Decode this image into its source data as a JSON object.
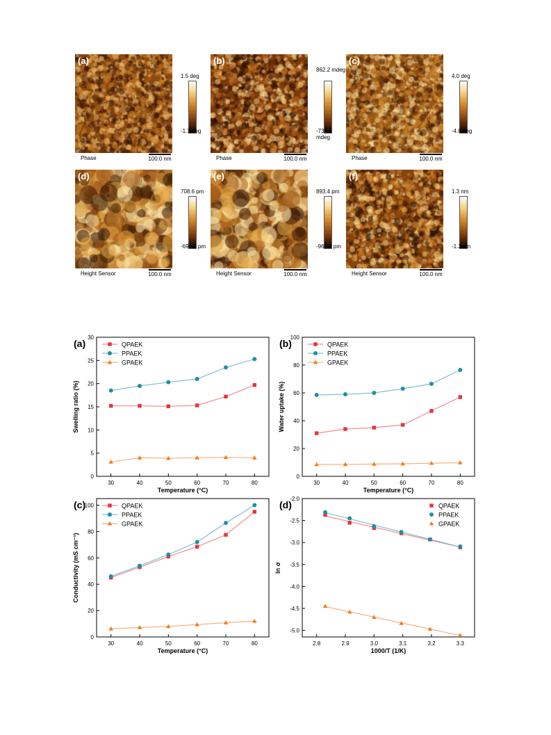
{
  "afm_panels": [
    {
      "label": "(a)",
      "mode": "Phase",
      "scale": "100.0 nm",
      "cmax": "1.5 deg",
      "cmin": "-1.3 deg"
    },
    {
      "label": "(b)",
      "mode": "Phase",
      "scale": "100.0 nm",
      "cmax": "862.2 mdeg",
      "cmin": "-739.8 mdeg"
    },
    {
      "label": "(c)",
      "mode": "Phase",
      "scale": "100.0 nm",
      "cmax": "4.0 deg",
      "cmin": "-4.8 deg"
    },
    {
      "label": "(d)",
      "mode": "Height Sensor",
      "scale": "100.0 nm",
      "cmax": "708.6 pm",
      "cmin": "-695.7 pm"
    },
    {
      "label": "(e)",
      "mode": "Height Sensor",
      "scale": "100.0 nm",
      "cmax": "893.4 pm",
      "cmin": "-960.2 pm"
    },
    {
      "label": "(f)",
      "mode": "Height Sensor",
      "scale": "100.0 nm",
      "cmax": "1.3 nm",
      "cmin": "-1.3 nm"
    }
  ],
  "colors": {
    "QPAEK": "#e8343a",
    "PPAEK": "#1f8fa6",
    "GPAEK": "#f07f1f",
    "line_QPAEK": "#f28b8d",
    "line_PPAEK": "#7fc0d3",
    "line_GPAEK": "#f5b07c"
  },
  "chart_data": [
    {
      "type": "line",
      "panel": "(a)",
      "xlabel": "Temperature (°C)",
      "ylabel": "Swelling ratio (%)",
      "x": [
        30,
        40,
        50,
        60,
        70,
        80
      ],
      "xlim": [
        25,
        85
      ],
      "ylim": [
        0,
        30
      ],
      "xticks": [
        30,
        40,
        50,
        60,
        70,
        80
      ],
      "yticks": [
        0,
        5,
        10,
        15,
        20,
        25,
        30
      ],
      "legend": "top-left",
      "series": [
        {
          "name": "QPAEK",
          "values": [
            15.2,
            15.2,
            15.1,
            15.3,
            17.2,
            19.7
          ]
        },
        {
          "name": "PPAEK",
          "values": [
            18.5,
            19.5,
            20.3,
            21.0,
            23.5,
            25.3
          ]
        },
        {
          "name": "GPAEK",
          "values": [
            3.1,
            4.0,
            3.9,
            4.0,
            4.1,
            4.0
          ]
        }
      ]
    },
    {
      "type": "line",
      "panel": "(b)",
      "xlabel": "Temperature (°C)",
      "ylabel": "Water uptake (%)",
      "x": [
        30,
        40,
        50,
        60,
        70,
        80
      ],
      "xlim": [
        25,
        85
      ],
      "ylim": [
        0,
        100
      ],
      "xticks": [
        30,
        40,
        50,
        60,
        70,
        80
      ],
      "yticks": [
        0,
        20,
        40,
        60,
        80,
        100
      ],
      "legend": "top-left",
      "series": [
        {
          "name": "QPAEK",
          "values": [
            31,
            34,
            35,
            37,
            47,
            57
          ]
        },
        {
          "name": "PPAEK",
          "values": [
            58.5,
            59,
            60,
            63,
            66.5,
            76.5
          ]
        },
        {
          "name": "GPAEK",
          "values": [
            8.5,
            8.6,
            8.8,
            9.0,
            9.4,
            9.8
          ]
        }
      ]
    },
    {
      "type": "line",
      "panel": "(c)",
      "xlabel": "Temperature (°C)",
      "ylabel": "Conductivity (mS cm⁻¹)",
      "x": [
        30,
        40,
        50,
        60,
        70,
        80
      ],
      "xlim": [
        25,
        85
      ],
      "ylim": [
        0,
        105
      ],
      "xticks": [
        30,
        40,
        50,
        60,
        70,
        80
      ],
      "yticks": [
        0,
        20,
        40,
        60,
        80,
        100
      ],
      "legend": "top-left",
      "series": [
        {
          "name": "QPAEK",
          "values": [
            45,
            53,
            61,
            68.5,
            77.5,
            95
          ]
        },
        {
          "name": "PPAEK",
          "values": [
            46,
            54,
            62.5,
            72,
            86.5,
            100
          ]
        },
        {
          "name": "GPAEK",
          "values": [
            6.2,
            7.2,
            8.0,
            9.4,
            10.8,
            12.0
          ]
        }
      ]
    },
    {
      "type": "scatter",
      "panel": "(d)",
      "xlabel": "1000/T (1/K)",
      "ylabel": "ln σ",
      "xlim": [
        2.75,
        3.35
      ],
      "ylim": [
        -5.15,
        -2.0
      ],
      "xticks": [
        2.8,
        2.9,
        3.0,
        3.1,
        3.2,
        3.3
      ],
      "yticks": [
        -2.0,
        -2.5,
        -3.0,
        -3.5,
        -4.0,
        -4.5,
        -5.0
      ],
      "legend": "top-right",
      "fit_lines": true,
      "series": [
        {
          "name": "QPAEK",
          "x": [
            2.83,
            2.915,
            3.0,
            3.095,
            3.195,
            3.3
          ],
          "values": [
            -2.37,
            -2.55,
            -2.67,
            -2.79,
            -2.93,
            -3.11
          ]
        },
        {
          "name": "PPAEK",
          "x": [
            2.83,
            2.915,
            3.0,
            3.095,
            3.195,
            3.3
          ],
          "values": [
            -2.31,
            -2.45,
            -2.63,
            -2.76,
            -2.93,
            -3.09
          ]
        },
        {
          "name": "GPAEK",
          "x": [
            2.83,
            2.915,
            3.0,
            3.095,
            3.195,
            3.3
          ],
          "values": [
            -4.45,
            -4.58,
            -4.7,
            -4.84,
            -4.97,
            -5.11
          ]
        }
      ]
    }
  ]
}
